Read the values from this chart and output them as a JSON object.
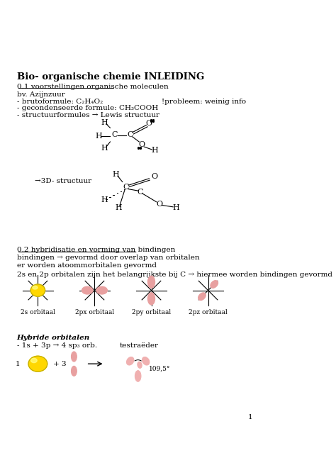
{
  "title": "Bio- organische chemie INLEIDING",
  "bg_color": "#ffffff",
  "text_color": "#000000",
  "section1_header": "0.1 voorstellingen organische moleculen",
  "section1_lines": [
    "bv. Azijnzuur",
    "- brutoformule: C₂H₄O₂",
    "- gecondenseerde formule: CH₃COOH",
    "- structuurformules → Lewis structuur"
  ],
  "problem_note": "!probleem: weinig info",
  "arrow_3d": "→3D- structuur",
  "section2_header": "0.2 hybridisatie en vorming van bindingen",
  "section2_lines": [
    "bindingen → gevormd door overlap van orbitalen",
    "er worden atoommorbitalen gevormd"
  ],
  "section2_note": "2s en 2p orbitalen zijn het belangrijkste bij C → hiermee worden bindingen gevormd",
  "orbital_labels": [
    "2s orbitaal",
    "2px orbitaal",
    "2py orbitaal",
    "2pz orbitaal"
  ],
  "hybrid_header": "Hybride orbitalen",
  "hybrid_line": "- 1s + 3p → 4 sp₃ orb.",
  "hybrid_label": "testraëder",
  "hybrid_angle": "109,5°",
  "hybrid_prefix": "1",
  "hybrid_plus": "+ 3",
  "page_number": "1"
}
